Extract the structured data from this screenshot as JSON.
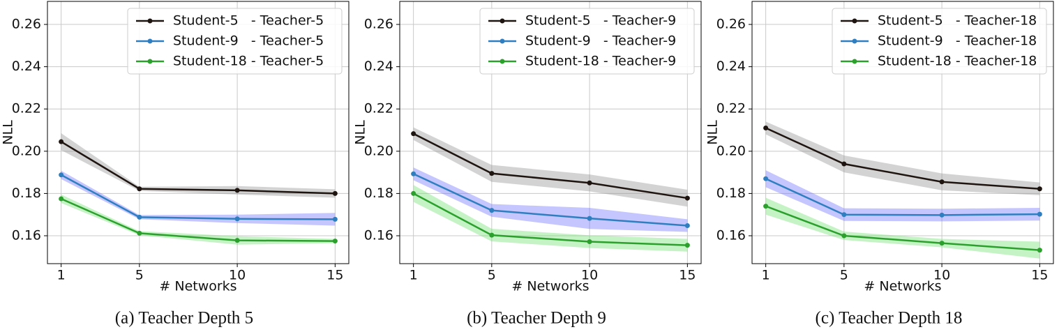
{
  "chart_data": [
    {
      "type": "line",
      "caption": "(a)  Teacher Depth 5",
      "xlabel": "# Networks",
      "ylabel": "NLL",
      "x": [
        1,
        5,
        10,
        15
      ],
      "xlim": [
        0.3,
        15.7
      ],
      "xticks": [
        1,
        5,
        10,
        15
      ],
      "ylim": [
        0.1468,
        0.2709
      ],
      "yticks": [
        0.16,
        0.18,
        {
          "value": 0.2,
          "label": "0.20"
        },
        0.22,
        0.24,
        0.26
      ],
      "grid": true,
      "legend": "upper right",
      "series": [
        {
          "name": "Student-5   - Teacher-5",
          "color": "#1e1410",
          "band_color": "#909090",
          "values": [
            0.2045,
            0.1822,
            0.1815,
            0.18
          ],
          "errors": [
            0.004,
            0.001,
            0.002,
            0.002
          ]
        },
        {
          "name": "Student-9   - Teacher-5",
          "color": "#2f7fc0",
          "band_color": "#7070ff",
          "values": [
            0.1888,
            0.1688,
            0.168,
            0.1678
          ],
          "errors": [
            0.002,
            0.001,
            0.002,
            0.003
          ]
        },
        {
          "name": "Student-18 - Teacher-5",
          "color": "#2ca02c",
          "band_color": "#70e070",
          "values": [
            0.1775,
            0.1612,
            0.1578,
            0.1575
          ],
          "errors": [
            0.002,
            0.001,
            0.002,
            0.001
          ]
        }
      ]
    },
    {
      "type": "line",
      "caption": "(b)  Teacher Depth 9",
      "xlabel": "# Networks",
      "ylabel": "NLL",
      "x": [
        1,
        5,
        10,
        15
      ],
      "xlim": [
        0.3,
        15.7
      ],
      "xticks": [
        1,
        5,
        10,
        15
      ],
      "ylim": [
        0.1468,
        0.2709
      ],
      "yticks": [
        0.16,
        0.18,
        {
          "value": 0.2,
          "label": "0.20"
        },
        0.22,
        0.24,
        0.26
      ],
      "grid": true,
      "legend": "upper right",
      "series": [
        {
          "name": "Student-5   - Teacher-9",
          "color": "#1e1410",
          "band_color": "#909090",
          "values": [
            0.2083,
            0.1895,
            0.185,
            0.1778
          ],
          "errors": [
            0.003,
            0.004,
            0.004,
            0.004
          ]
        },
        {
          "name": "Student-9   - Teacher-9",
          "color": "#2f7fc0",
          "band_color": "#7070ff",
          "values": [
            0.1893,
            0.172,
            0.1682,
            0.1648
          ],
          "errors": [
            0.003,
            0.003,
            0.005,
            0.003
          ]
        },
        {
          "name": "Student-18 - Teacher-9",
          "color": "#2ca02c",
          "band_color": "#70e070",
          "values": [
            0.18,
            0.1603,
            0.1572,
            0.1555
          ],
          "errors": [
            0.004,
            0.003,
            0.003,
            0.003
          ]
        }
      ]
    },
    {
      "type": "line",
      "caption": "(c)  Teacher Depth 18",
      "xlabel": "# Networks",
      "ylabel": "NLL",
      "x": [
        1,
        5,
        10,
        15
      ],
      "xlim": [
        0.3,
        15.7
      ],
      "xticks": [
        1,
        5,
        10,
        15
      ],
      "ylim": [
        0.1468,
        0.2709
      ],
      "yticks": [
        0.16,
        0.18,
        {
          "value": 0.2,
          "label": "0.20"
        },
        0.22,
        0.24,
        0.26
      ],
      "grid": true,
      "legend": "upper right",
      "series": [
        {
          "name": "Student-5   - Teacher-18",
          "color": "#1e1410",
          "band_color": "#909090",
          "values": [
            0.211,
            0.194,
            0.1855,
            0.1822
          ],
          "errors": [
            0.003,
            0.004,
            0.004,
            0.003
          ]
        },
        {
          "name": "Student-9   - Teacher-18",
          "color": "#2f7fc0",
          "band_color": "#7070ff",
          "values": [
            0.187,
            0.17,
            0.1698,
            0.1702
          ],
          "errors": [
            0.004,
            0.003,
            0.003,
            0.003
          ]
        },
        {
          "name": "Student-18 - Teacher-18",
          "color": "#2ca02c",
          "band_color": "#70e070",
          "values": [
            0.174,
            0.16,
            0.1565,
            0.1532
          ],
          "errors": [
            0.004,
            0.002,
            0.002,
            0.004
          ]
        }
      ]
    }
  ]
}
